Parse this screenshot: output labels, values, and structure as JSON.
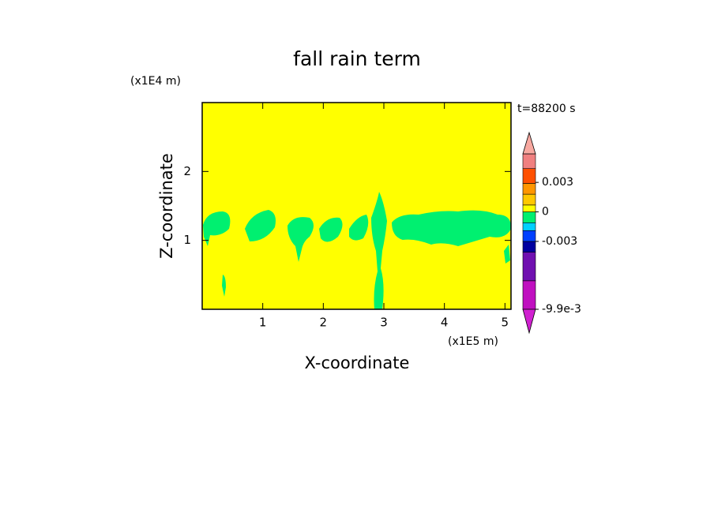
{
  "chart_data": {
    "type": "contour",
    "title": "fall rain term",
    "y_unit": "(x1E4 m)",
    "x_unit": "(x1E5 m)",
    "time_label": "t=88200 s",
    "xlabel": "X-coordinate",
    "ylabel": "Z-coordinate",
    "xlim": [
      0,
      5.1
    ],
    "ylim": [
      0,
      3
    ],
    "xticks": [
      1,
      2,
      3,
      4,
      5
    ],
    "yticks": [
      1,
      2
    ],
    "colorbar": {
      "levels": [
        -0.0099,
        -0.007,
        -0.0041,
        -0.003,
        -0.0019,
        -0.0011,
        0,
        0.0007,
        0.0018,
        0.0029,
        0.0044,
        0.0059
      ],
      "colors": [
        "#c010c0",
        "#7010b0",
        "#0000a0",
        "#0040ff",
        "#00d0ff",
        "#00f070",
        "#ffff00",
        "#ffc800",
        "#ff9600",
        "#ff5000",
        "#f08080"
      ],
      "extend_colors": [
        "#d020d0",
        "#f8a8a0"
      ],
      "ticks": [
        0.003,
        0,
        -0.003,
        {
          "value": -0.0099,
          "label": "-9.9e-3"
        }
      ]
    }
  }
}
